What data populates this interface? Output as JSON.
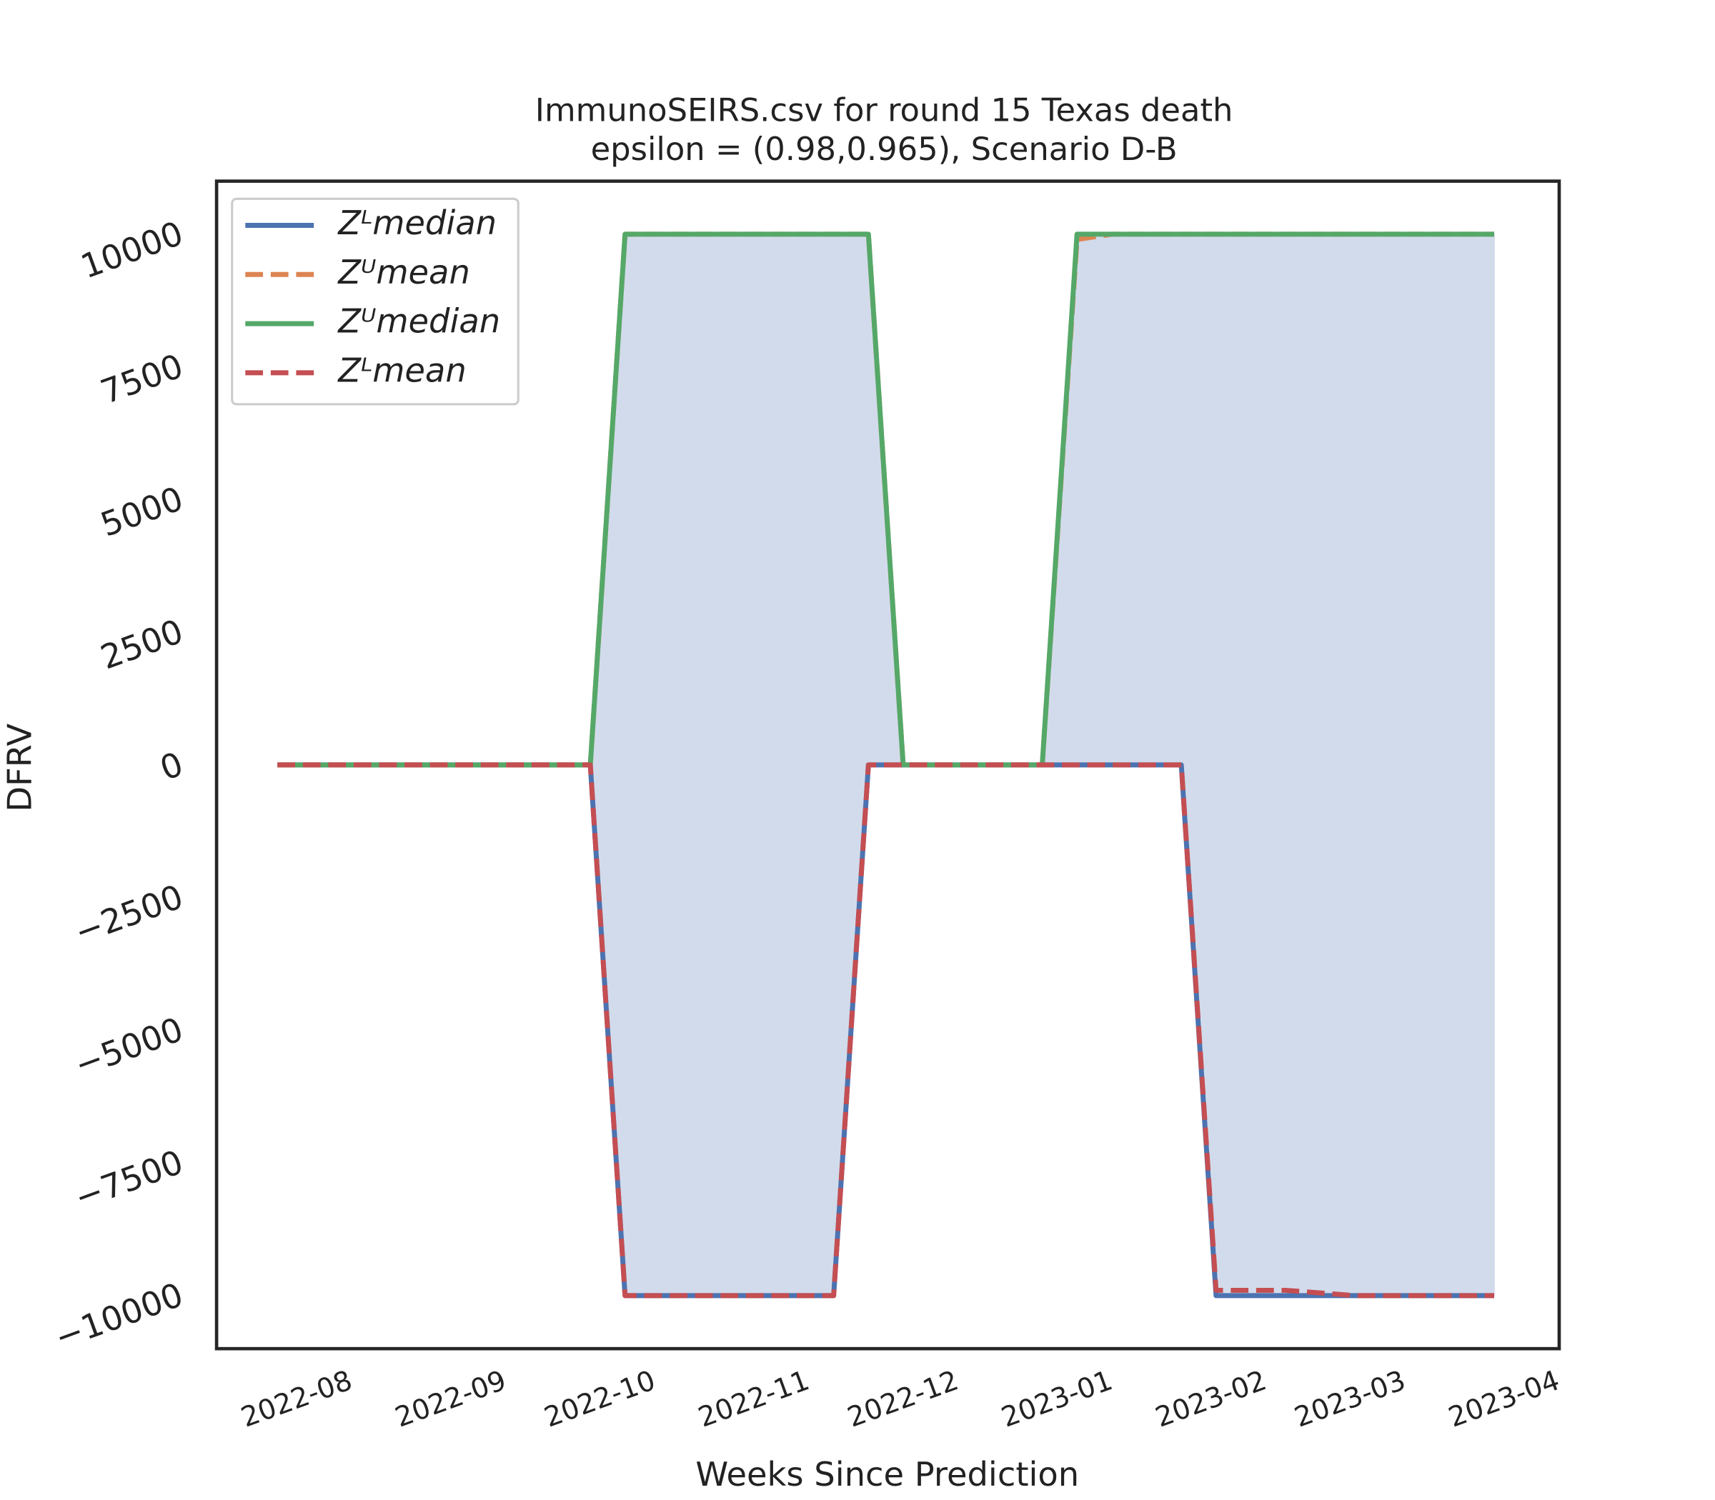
{
  "chart_data": {
    "type": "line",
    "title": "ImmunoSEIRS.csv for round 15 Texas  death",
    "subtitle": "epsilon = (0.98,0.965), Scenario D-B",
    "x_label": "Weeks Since Prediction",
    "y_label": "DFRV",
    "x": [
      0,
      1,
      2,
      3,
      4,
      5,
      6,
      7,
      8,
      9,
      10,
      11,
      12,
      13,
      14,
      15,
      16,
      17,
      18,
      19,
      20,
      21,
      22,
      23,
      24,
      25,
      26,
      27,
      28,
      29,
      30,
      31,
      32,
      33,
      34,
      35
    ],
    "xlim": [
      -1.75,
      36.87
    ],
    "xticks": [
      {
        "value": 0.76,
        "label": "2022-08"
      },
      {
        "value": 5.19,
        "label": "2022-09"
      },
      {
        "value": 9.48,
        "label": "2022-10"
      },
      {
        "value": 13.91,
        "label": "2022-11"
      },
      {
        "value": 18.2,
        "label": "2022-12"
      },
      {
        "value": 22.63,
        "label": "2023-01"
      },
      {
        "value": 27.06,
        "label": "2023-02"
      },
      {
        "value": 31.06,
        "label": "2023-03"
      },
      {
        "value": 35.49,
        "label": "2023-04"
      }
    ],
    "ylim": [
      -11000,
      11000
    ],
    "yticks": [
      {
        "value": -10000,
        "label": "−10000"
      },
      {
        "value": -7500,
        "label": "−7500"
      },
      {
        "value": -5000,
        "label": "−5000"
      },
      {
        "value": -2500,
        "label": "−2500"
      },
      0,
      2500,
      5000,
      7500,
      10000
    ],
    "grid": false,
    "legend": "upper left",
    "fill_color": "#d2dbeb",
    "series": [
      {
        "name": "Zᴸmedian",
        "color": "#4c72b0",
        "linestyle": "solid",
        "values": [
          0,
          0,
          0,
          0,
          0,
          0,
          0,
          0,
          0,
          0,
          -10000,
          -10000,
          -10000,
          -10000,
          -10000,
          -10000,
          -10000,
          0,
          0,
          0,
          0,
          0,
          0,
          0,
          0,
          0,
          0,
          -10000,
          -10000,
          -10000,
          -10000,
          -10000,
          -10000,
          -10000,
          -10000,
          -10000
        ]
      },
      {
        "name": "Zᵁmean",
        "color": "#dd8452",
        "linestyle": "dashed",
        "values": [
          0,
          0,
          0,
          0,
          0,
          0,
          0,
          0,
          0,
          0,
          10000,
          10000,
          10000,
          10000,
          10000,
          10000,
          10000,
          10000,
          0,
          0,
          0,
          0,
          0,
          9900,
          10000,
          10000,
          10000,
          10000,
          10000,
          10000,
          10000,
          10000,
          10000,
          10000,
          10000,
          10000
        ]
      },
      {
        "name": "Zᵁmedian",
        "color": "#55a868",
        "linestyle": "solid",
        "values": [
          0,
          0,
          0,
          0,
          0,
          0,
          0,
          0,
          0,
          0,
          10000,
          10000,
          10000,
          10000,
          10000,
          10000,
          10000,
          10000,
          0,
          0,
          0,
          0,
          0,
          10000,
          10000,
          10000,
          10000,
          10000,
          10000,
          10000,
          10000,
          10000,
          10000,
          10000,
          10000,
          10000
        ]
      },
      {
        "name": "Zᴸmean",
        "color": "#c44e52",
        "linestyle": "dashed",
        "values": [
          0,
          0,
          0,
          0,
          0,
          0,
          0,
          0,
          0,
          0,
          -10000,
          -10000,
          -10000,
          -10000,
          -10000,
          -10000,
          -10000,
          0,
          0,
          0,
          0,
          0,
          0,
          0,
          0,
          0,
          0,
          -9900,
          -9900,
          -9900,
          -9950,
          -10000,
          -10000,
          -10000,
          -10000,
          -10000
        ]
      }
    ]
  }
}
